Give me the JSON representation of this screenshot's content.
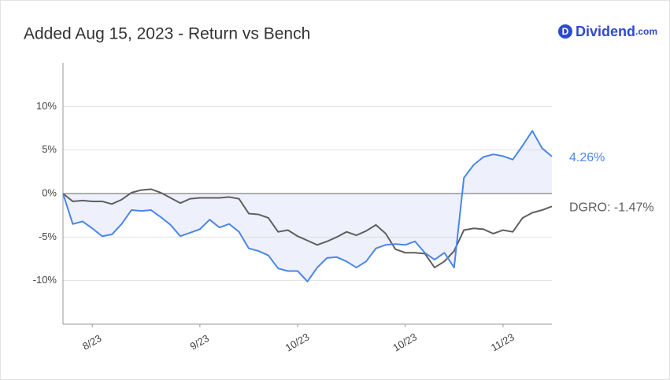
{
  "chart_data": {
    "type": "line",
    "title": "Added Aug 15, 2023 - Return vs Bench",
    "logo": {
      "icon": "D",
      "text": "Dividend",
      "suffix": ".com"
    },
    "categories": [
      null,
      null,
      null,
      "8/23",
      null,
      null,
      null,
      null,
      null,
      null,
      null,
      null,
      null,
      null,
      "9/23",
      null,
      null,
      null,
      null,
      null,
      null,
      null,
      null,
      null,
      "10/23",
      null,
      null,
      null,
      null,
      null,
      null,
      null,
      null,
      null,
      null,
      "10/23",
      null,
      null,
      null,
      null,
      null,
      null,
      null,
      null,
      null,
      "11/23",
      null,
      null,
      null,
      null,
      null
    ],
    "series": [
      {
        "label": "4.26%",
        "color": "#4a86e8",
        "fill": "#eef0fb",
        "values": [
          0,
          -3.5,
          -3.2,
          -4.0,
          -4.9,
          -4.7,
          -3.5,
          -1.9,
          -2.0,
          -1.9,
          -2.7,
          -3.6,
          -4.9,
          -4.5,
          -4.1,
          -3.0,
          -3.9,
          -3.5,
          -4.4,
          -6.3,
          -6.6,
          -7.1,
          -8.6,
          -8.9,
          -8.9,
          -10.1,
          -8.5,
          -7.4,
          -7.3,
          -7.8,
          -8.5,
          -7.8,
          -6.3,
          -5.9,
          -5.8,
          -5.9,
          -5.5,
          -6.8,
          -7.6,
          -6.8,
          -8.5,
          1.8,
          3.3,
          4.2,
          4.5,
          4.3,
          3.9,
          5.5,
          7.2,
          5.2,
          4.26
        ]
      },
      {
        "label": "DGRO: -1.47%",
        "color": "#5f5f5f",
        "values": [
          0,
          -0.9,
          -0.8,
          -0.9,
          -0.9,
          -1.2,
          -0.7,
          0.1,
          0.4,
          0.5,
          0.1,
          -0.5,
          -1.1,
          -0.6,
          -0.5,
          -0.5,
          -0.5,
          -0.4,
          -0.6,
          -2.3,
          -2.4,
          -2.8,
          -4.4,
          -4.2,
          -4.9,
          -5.4,
          -5.9,
          -5.5,
          -5.0,
          -4.4,
          -4.8,
          -4.3,
          -3.6,
          -4.6,
          -6.4,
          -6.8,
          -6.8,
          -6.9,
          -8.5,
          -7.8,
          -6.6,
          -4.2,
          -4.0,
          -4.1,
          -4.6,
          -4.2,
          -4.4,
          -2.8,
          -2.2,
          -1.9,
          -1.47
        ]
      }
    ],
    "ylim": [
      -15,
      15
    ],
    "yticks": [
      {
        "value": -10,
        "label": "-10%"
      },
      {
        "value": -5,
        "label": "-5%"
      },
      {
        "value": 0,
        "label": "0%"
      },
      {
        "value": 5,
        "label": "5%"
      },
      {
        "value": 10,
        "label": "10%"
      }
    ],
    "grid": true
  }
}
